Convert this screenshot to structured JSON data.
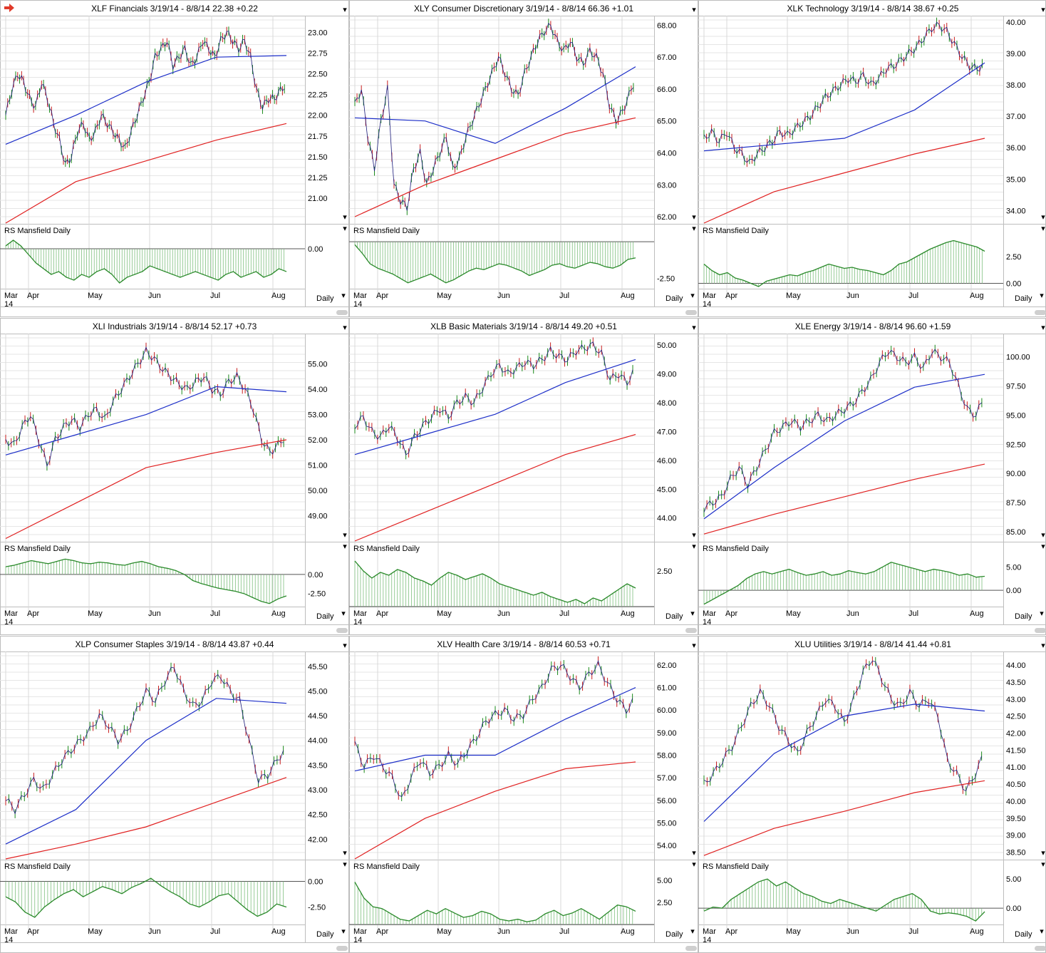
{
  "app": {
    "interval_label": "Daily",
    "indicator_label": "RS Mansfield Daily",
    "year_label": "14"
  },
  "months": [
    "Mar",
    "Apr",
    "May",
    "Jun",
    "Jul",
    "Aug"
  ],
  "colors": {
    "up": "#1a8a1a",
    "down": "#c81e1e",
    "ma_short": "#1c2ec8",
    "ma_long": "#e02020",
    "rs": "#2a8a2a",
    "grid": "#e6e6e6"
  },
  "charts": [
    {
      "symbol": "XLF",
      "name": "Financials",
      "range": "3/19/14 - 8/8/14",
      "last": "22.38",
      "change": "+0.22",
      "chart_data": {
        "type": "line",
        "ylim": [
          20.7,
          23.2
        ],
        "ticks": [
          "21.00",
          "21.25",
          "21.50",
          "21.75",
          "22.00",
          "22.25",
          "22.50",
          "22.75",
          "23.00"
        ],
        "price": [
          22.0,
          22.3,
          22.5,
          22.4,
          22.2,
          22.1,
          22.4,
          22.2,
          21.9,
          21.7,
          21.4,
          21.5,
          21.8,
          21.9,
          21.7,
          21.8,
          22.0,
          21.9,
          21.8,
          21.7,
          21.6,
          21.8,
          22.0,
          22.2,
          22.4,
          22.7,
          22.8,
          22.9,
          22.6,
          22.7,
          22.8,
          22.6,
          22.7,
          22.9,
          22.8,
          22.7,
          22.9,
          23.0,
          22.9,
          22.8,
          22.9,
          22.7,
          22.3,
          22.1,
          22.2,
          22.2,
          22.3,
          22.38
        ],
        "ma50": [
          21.65,
          22.0,
          22.4,
          22.7,
          22.72
        ],
        "ma200": [
          20.7,
          21.2,
          21.45,
          21.7,
          21.9
        ],
        "rs": {
          "ticks": [
            "0.00"
          ],
          "ylim": [
            -1.4,
            0.4
          ],
          "zero": 0.0,
          "values": [
            0.1,
            0.3,
            0.1,
            -0.2,
            -0.5,
            -0.7,
            -0.9,
            -0.8,
            -1.0,
            -1.1,
            -0.9,
            -1.0,
            -0.8,
            -0.7,
            -0.9,
            -1.2,
            -1.0,
            -0.9,
            -0.8,
            -0.6,
            -0.7,
            -0.8,
            -0.9,
            -1.0,
            -0.9,
            -0.8,
            -0.9,
            -1.0,
            -1.1,
            -0.9,
            -0.8,
            -1.0,
            -0.9,
            -0.8,
            -1.0,
            -0.9,
            -0.7,
            -0.8
          ]
        }
      }
    },
    {
      "symbol": "XLY",
      "name": "Consumer Discretionary",
      "range": "3/19/14 - 8/8/14",
      "last": "66.36",
      "change": "+1.01",
      "chart_data": {
        "type": "line",
        "ylim": [
          61.8,
          68.3
        ],
        "ticks": [
          "62.00",
          "63.00",
          "64.00",
          "65.00",
          "66.00",
          "67.00",
          "68.00"
        ],
        "price": [
          65.5,
          66.0,
          64.5,
          63.5,
          65.0,
          66.0,
          63.0,
          62.5,
          62.3,
          63.5,
          64.0,
          63.0,
          63.5,
          64.0,
          64.5,
          63.5,
          63.8,
          64.5,
          65.0,
          65.5,
          66.0,
          66.5,
          67.0,
          66.5,
          66.0,
          65.8,
          66.5,
          67.0,
          67.5,
          67.8,
          68.0,
          67.5,
          67.2,
          67.5,
          67.0,
          66.8,
          67.2,
          67.0,
          66.5,
          65.5,
          65.0,
          65.3,
          65.8,
          66.36
        ],
        "ma50": [
          65.1,
          65.0,
          64.3,
          65.4,
          66.7
        ],
        "ma200": [
          62.0,
          63.0,
          63.8,
          64.6,
          65.1
        ],
        "rs": {
          "ticks": [
            "-2.50"
          ],
          "ylim": [
            -3.2,
            0.3
          ],
          "zero": 0.0,
          "values": [
            -0.2,
            -0.8,
            -1.5,
            -1.8,
            -2.0,
            -2.2,
            -2.5,
            -2.8,
            -2.6,
            -2.4,
            -2.2,
            -2.5,
            -2.8,
            -2.6,
            -2.3,
            -2.0,
            -1.8,
            -1.9,
            -1.7,
            -1.5,
            -1.6,
            -1.8,
            -2.0,
            -2.3,
            -2.1,
            -1.9,
            -1.6,
            -1.5,
            -1.7,
            -1.8,
            -1.6,
            -1.4,
            -1.5,
            -1.7,
            -1.8,
            -1.6,
            -1.2,
            -1.1
          ]
        }
      }
    },
    {
      "symbol": "XLK",
      "name": "Technology",
      "range": "3/19/14 - 8/8/14",
      "last": "38.67",
      "change": "+0.25",
      "chart_data": {
        "type": "line",
        "ylim": [
          33.6,
          40.2
        ],
        "ticks": [
          "34.00",
          "35.00",
          "36.00",
          "37.00",
          "38.00",
          "39.00",
          "40.00"
        ],
        "price": [
          36.3,
          36.5,
          36.2,
          36.5,
          36.0,
          35.8,
          35.5,
          35.8,
          36.0,
          36.2,
          36.5,
          36.4,
          36.6,
          36.8,
          37.0,
          37.3,
          37.6,
          37.8,
          38.0,
          38.2,
          38.1,
          38.3,
          38.0,
          38.2,
          38.5,
          38.6,
          38.8,
          39.0,
          39.2,
          39.5,
          39.8,
          39.9,
          39.7,
          39.3,
          38.9,
          38.6,
          38.5,
          38.67
        ],
        "ma50": [
          35.9,
          36.1,
          36.3,
          37.2,
          38.7
        ],
        "ma200": [
          33.6,
          34.6,
          35.2,
          35.8,
          36.3
        ],
        "rs": {
          "ticks": [
            "0.00",
            "2.50"
          ],
          "ylim": [
            -0.5,
            4.3
          ],
          "zero": 0.0,
          "values": [
            1.8,
            1.2,
            0.8,
            1.0,
            0.5,
            0.3,
            0.0,
            -0.3,
            0.2,
            0.4,
            0.6,
            0.8,
            0.7,
            1.0,
            1.2,
            1.5,
            1.8,
            1.6,
            1.4,
            1.5,
            1.3,
            1.2,
            1.0,
            0.8,
            1.2,
            1.8,
            2.0,
            2.4,
            2.8,
            3.2,
            3.5,
            3.8,
            4.0,
            3.8,
            3.6,
            3.4,
            3.0
          ]
        }
      }
    },
    {
      "symbol": "XLI",
      "name": "Industrials",
      "range": "3/19/14 - 8/8/14",
      "last": "52.17",
      "change": "+0.73",
      "chart_data": {
        "type": "line",
        "ylim": [
          48.0,
          56.2
        ],
        "ticks": [
          "49.00",
          "50.00",
          "51.00",
          "52.00",
          "53.00",
          "54.00",
          "55.00"
        ],
        "price": [
          52.0,
          51.8,
          52.5,
          53.0,
          52.0,
          51.0,
          52.0,
          52.5,
          52.8,
          52.5,
          53.0,
          53.2,
          52.8,
          53.5,
          54.0,
          54.5,
          55.0,
          55.5,
          55.2,
          54.8,
          54.5,
          54.2,
          54.0,
          54.3,
          54.5,
          54.0,
          53.8,
          54.3,
          54.5,
          54.0,
          53.2,
          52.0,
          51.5,
          51.8,
          52.17
        ],
        "ma50": [
          51.4,
          52.2,
          53.0,
          54.1,
          53.9
        ],
        "ma200": [
          48.1,
          49.5,
          50.9,
          51.5,
          52.0
        ],
        "rs": {
          "ticks": [
            "0.00",
            "-2.50"
          ],
          "ylim": [
            -4.2,
            2.5
          ],
          "zero": 0.0,
          "values": [
            1.0,
            1.2,
            1.5,
            1.8,
            1.6,
            1.4,
            1.7,
            2.0,
            1.8,
            1.5,
            1.4,
            1.6,
            1.5,
            1.3,
            1.2,
            1.5,
            1.7,
            1.4,
            1.0,
            0.8,
            0.5,
            0.0,
            -0.8,
            -1.2,
            -1.5,
            -1.8,
            -2.0,
            -2.2,
            -2.5,
            -3.0,
            -3.5,
            -3.8,
            -3.2,
            -2.8
          ]
        }
      }
    },
    {
      "symbol": "XLB",
      "name": "Basic Materials",
      "range": "3/19/14 - 8/8/14",
      "last": "49.20",
      "change": "+0.51",
      "chart_data": {
        "type": "line",
        "ylim": [
          43.2,
          50.4
        ],
        "ticks": [
          "44.00",
          "45.00",
          "46.00",
          "47.00",
          "48.00",
          "49.00",
          "50.00"
        ],
        "price": [
          47.2,
          47.5,
          47.0,
          46.8,
          47.2,
          46.8,
          46.2,
          46.8,
          47.2,
          47.5,
          47.8,
          47.5,
          48.0,
          48.2,
          48.0,
          48.5,
          49.0,
          49.3,
          49.0,
          49.2,
          49.4,
          49.3,
          49.5,
          49.8,
          49.6,
          49.5,
          49.8,
          49.9,
          50.0,
          49.7,
          48.8,
          49.0,
          48.7,
          49.2
        ],
        "ma50": [
          46.2,
          46.9,
          47.6,
          48.7,
          49.5
        ],
        "ma200": [
          43.2,
          44.2,
          45.2,
          46.2,
          46.9
        ],
        "rs": {
          "ticks": [
            "2.50"
          ],
          "ylim": [
            0.0,
            3.6
          ],
          "zero": 0.0,
          "values": [
            3.2,
            2.5,
            2.0,
            2.4,
            2.2,
            2.6,
            2.4,
            2.0,
            1.8,
            1.5,
            2.0,
            2.4,
            2.2,
            1.9,
            2.1,
            2.3,
            2.0,
            1.6,
            1.4,
            1.2,
            1.0,
            0.8,
            1.0,
            0.7,
            0.5,
            0.3,
            0.5,
            0.2,
            0.6,
            0.4,
            0.8,
            1.2,
            1.6,
            1.3
          ]
        }
      }
    },
    {
      "symbol": "XLE",
      "name": "Energy",
      "range": "3/19/14 - 8/8/14",
      "last": "96.60",
      "change": "+1.59",
      "chart_data": {
        "type": "line",
        "ylim": [
          84.2,
          102.0
        ],
        "ticks": [
          "85.00",
          "87.50",
          "90.00",
          "92.50",
          "95.00",
          "97.50",
          "100.00"
        ],
        "price": [
          87.0,
          87.5,
          88.0,
          89.5,
          90.5,
          89.0,
          90.5,
          92.0,
          93.5,
          94.0,
          94.5,
          94.0,
          94.5,
          95.0,
          94.5,
          95.0,
          95.5,
          96.0,
          97.0,
          98.0,
          99.5,
          100.5,
          100.0,
          99.5,
          100.0,
          99.0,
          100.5,
          100.0,
          99.5,
          97.5,
          95.5,
          95.0,
          96.6
        ],
        "ma50": [
          86.1,
          90.5,
          94.5,
          97.4,
          98.5
        ],
        "ma200": [
          84.8,
          86.5,
          88.0,
          89.5,
          90.8
        ],
        "rs": {
          "ticks": [
            "0.00",
            "5.00"
          ],
          "ylim": [
            -3.5,
            7.5
          ],
          "zero": 0.0,
          "values": [
            -3.0,
            -2.0,
            -1.0,
            0.0,
            1.0,
            2.5,
            3.5,
            4.0,
            3.5,
            4.0,
            4.5,
            3.8,
            3.2,
            3.5,
            4.0,
            3.2,
            3.5,
            4.2,
            3.8,
            3.5,
            4.0,
            5.0,
            6.0,
            5.5,
            5.0,
            4.5,
            4.0,
            4.5,
            4.2,
            3.8,
            3.2,
            3.5,
            2.8,
            3.0
          ]
        }
      }
    },
    {
      "symbol": "XLP",
      "name": "Consumer Staples",
      "range": "3/19/14 - 8/8/14",
      "last": "43.87",
      "change": "+0.44",
      "chart_data": {
        "type": "line",
        "ylim": [
          41.6,
          45.8
        ],
        "ticks": [
          "42.00",
          "42.50",
          "43.00",
          "43.50",
          "44.00",
          "44.50",
          "45.00",
          "45.50"
        ],
        "price": [
          42.8,
          42.6,
          42.9,
          43.2,
          43.0,
          43.3,
          43.6,
          43.8,
          44.0,
          44.2,
          44.5,
          44.3,
          44.0,
          44.2,
          44.6,
          45.0,
          44.8,
          45.2,
          45.5,
          45.0,
          44.7,
          44.8,
          45.2,
          45.3,
          45.0,
          44.8,
          44.0,
          43.2,
          43.3,
          43.6,
          43.87
        ],
        "ma50": [
          41.9,
          42.6,
          44.0,
          44.85,
          44.75
        ],
        "ma200": [
          41.6,
          41.9,
          42.25,
          42.75,
          43.25
        ],
        "rs": {
          "ticks": [
            "0.00",
            "-2.50"
          ],
          "ylim": [
            -4.2,
            0.8
          ],
          "zero": 0.0,
          "values": [
            -1.5,
            -2.0,
            -3.0,
            -3.5,
            -2.5,
            -1.8,
            -1.2,
            -0.8,
            -1.5,
            -1.0,
            -0.5,
            -0.8,
            -1.2,
            -0.6,
            -0.2,
            0.3,
            -0.4,
            -1.0,
            -1.5,
            -2.2,
            -2.5,
            -2.0,
            -1.4,
            -1.2,
            -2.0,
            -2.8,
            -3.4,
            -3.0,
            -2.2,
            -2.5
          ]
        }
      }
    },
    {
      "symbol": "XLV",
      "name": "Health Care",
      "range": "3/19/14 - 8/8/14",
      "last": "60.53",
      "change": "+0.71",
      "chart_data": {
        "type": "line",
        "ylim": [
          53.4,
          62.6
        ],
        "ticks": [
          "54.00",
          "55.00",
          "56.00",
          "57.00",
          "58.00",
          "59.00",
          "60.00",
          "61.00",
          "62.00"
        ],
        "price": [
          58.5,
          57.5,
          58.0,
          57.5,
          57.0,
          56.0,
          57.0,
          57.8,
          57.2,
          57.5,
          58.0,
          57.6,
          58.2,
          58.8,
          59.5,
          59.8,
          60.0,
          59.6,
          59.8,
          60.5,
          61.0,
          61.8,
          62.0,
          61.5,
          61.0,
          61.6,
          62.0,
          61.2,
          60.5,
          60.0,
          60.53
        ],
        "ma50": [
          57.3,
          58.0,
          58.0,
          59.6,
          61.0
        ],
        "ma200": [
          53.4,
          55.2,
          56.4,
          57.4,
          57.7
        ],
        "rs": {
          "ticks": [
            "2.50",
            "5.00"
          ],
          "ylim": [
            0.0,
            5.8
          ],
          "zero": 0.0,
          "values": [
            4.8,
            3.0,
            2.0,
            1.8,
            1.2,
            0.6,
            0.4,
            1.0,
            1.6,
            1.2,
            1.8,
            1.3,
            0.8,
            1.0,
            1.5,
            1.2,
            0.6,
            0.4,
            0.6,
            0.3,
            0.5,
            1.2,
            1.6,
            1.0,
            1.3,
            1.8,
            1.2,
            0.6,
            1.4,
            2.2,
            2.0,
            1.5
          ]
        }
      }
    },
    {
      "symbol": "XLU",
      "name": "Utilities",
      "range": "3/19/14 - 8/8/14",
      "last": "41.44",
      "change": "+0.81",
      "chart_data": {
        "type": "line",
        "ylim": [
          38.3,
          44.4
        ],
        "ticks": [
          "38.50",
          "39.00",
          "39.50",
          "40.00",
          "40.50",
          "41.00",
          "41.50",
          "42.00",
          "42.50",
          "43.00",
          "43.50",
          "44.00"
        ],
        "price": [
          40.5,
          40.8,
          41.2,
          41.6,
          42.2,
          42.8,
          43.2,
          42.8,
          42.2,
          41.8,
          41.4,
          42.0,
          42.5,
          43.0,
          42.8,
          42.3,
          43.0,
          43.8,
          44.2,
          43.6,
          43.0,
          42.8,
          43.2,
          42.8,
          43.0,
          42.5,
          41.2,
          40.8,
          40.3,
          40.8,
          41.44
        ],
        "ma50": [
          39.4,
          41.4,
          42.5,
          42.85,
          42.65
        ],
        "ma200": [
          38.4,
          39.2,
          39.7,
          40.25,
          40.6
        ],
        "rs": {
          "ticks": [
            "0.00",
            "5.00"
          ],
          "ylim": [
            -2.8,
            6.0
          ],
          "zero": 0.0,
          "values": [
            -0.5,
            0.2,
            0.0,
            1.5,
            2.5,
            3.5,
            4.5,
            5.0,
            3.8,
            4.5,
            3.5,
            2.5,
            2.0,
            1.2,
            0.8,
            1.5,
            1.0,
            0.5,
            0.0,
            -0.5,
            0.5,
            1.5,
            2.0,
            2.5,
            1.5,
            -0.5,
            -1.0,
            -0.8,
            -1.0,
            -1.4,
            -2.2,
            -0.6
          ]
        }
      }
    }
  ]
}
